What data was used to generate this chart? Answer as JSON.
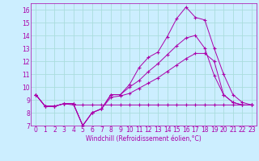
{
  "xlabel": "Windchill (Refroidissement éolien,°C)",
  "bg_color": "#cceeff",
  "grid_color": "#aadddd",
  "line_color": "#aa00aa",
  "xlim": [
    -0.5,
    23.5
  ],
  "ylim": [
    7,
    16.5
  ],
  "xticks": [
    0,
    1,
    2,
    3,
    4,
    5,
    6,
    7,
    8,
    9,
    10,
    11,
    12,
    13,
    14,
    15,
    16,
    17,
    18,
    19,
    20,
    21,
    22,
    23
  ],
  "yticks": [
    7,
    8,
    9,
    10,
    11,
    12,
    13,
    14,
    15,
    16
  ],
  "series": [
    [
      9.4,
      8.5,
      8.5,
      8.7,
      8.7,
      7.0,
      8.0,
      8.3,
      9.4,
      9.4,
      10.2,
      11.5,
      12.3,
      12.7,
      13.9,
      15.3,
      16.2,
      15.4,
      15.2,
      13.0,
      11.0,
      9.4,
      8.8,
      8.6
    ],
    [
      9.4,
      8.5,
      8.5,
      8.7,
      8.7,
      7.0,
      8.0,
      8.3,
      9.4,
      9.4,
      10.0,
      10.5,
      11.2,
      11.8,
      12.5,
      13.2,
      13.8,
      14.0,
      13.0,
      10.9,
      9.4,
      8.8,
      8.6,
      8.6
    ],
    [
      9.4,
      8.5,
      8.5,
      8.7,
      8.7,
      7.0,
      8.0,
      8.3,
      9.2,
      9.3,
      9.5,
      9.9,
      10.3,
      10.7,
      11.2,
      11.7,
      12.2,
      12.6,
      12.6,
      12.0,
      9.4,
      8.8,
      8.6,
      8.6
    ],
    [
      9.4,
      8.5,
      8.5,
      8.7,
      8.6,
      8.6,
      8.6,
      8.6,
      8.6,
      8.6,
      8.6,
      8.6,
      8.6,
      8.6,
      8.6,
      8.6,
      8.6,
      8.6,
      8.6,
      8.6,
      8.6,
      8.6,
      8.6,
      8.6
    ]
  ],
  "tick_fontsize": 5.5,
  "xlabel_fontsize": 5.5
}
